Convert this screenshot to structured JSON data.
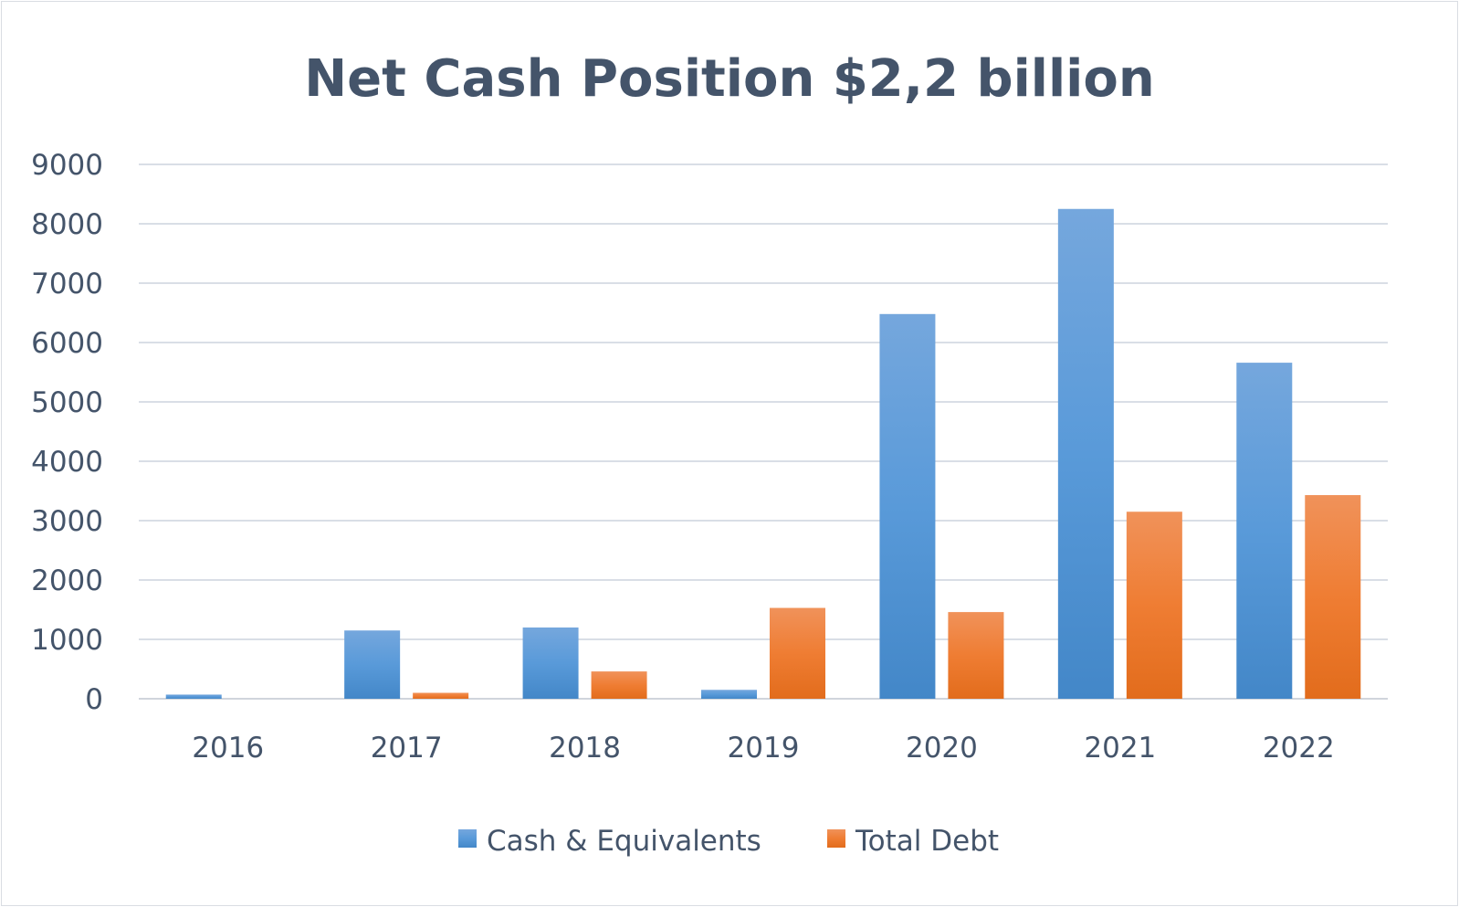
{
  "chart_data": {
    "type": "bar",
    "title": "Net Cash Position $2,2 billion",
    "xlabel": "",
    "ylabel": "",
    "categories": [
      "2016",
      "2017",
      "2018",
      "2019",
      "2020",
      "2021",
      "2022"
    ],
    "series": [
      {
        "name": "Cash & Equivalents",
        "color": "#5b9bd5",
        "values": [
          70,
          1150,
          1200,
          150,
          6480,
          8250,
          5660
        ]
      },
      {
        "name": "Total Debt",
        "color": "#ed7d31",
        "values": [
          0,
          100,
          460,
          1530,
          1460,
          3150,
          3430
        ]
      }
    ],
    "ylim": [
      0,
      9000
    ],
    "yticks": [
      "0",
      "1000",
      "2000",
      "3000",
      "4000",
      "5000",
      "6000",
      "7000",
      "8000",
      "9000"
    ],
    "grid": true,
    "legend_position": "bottom"
  }
}
